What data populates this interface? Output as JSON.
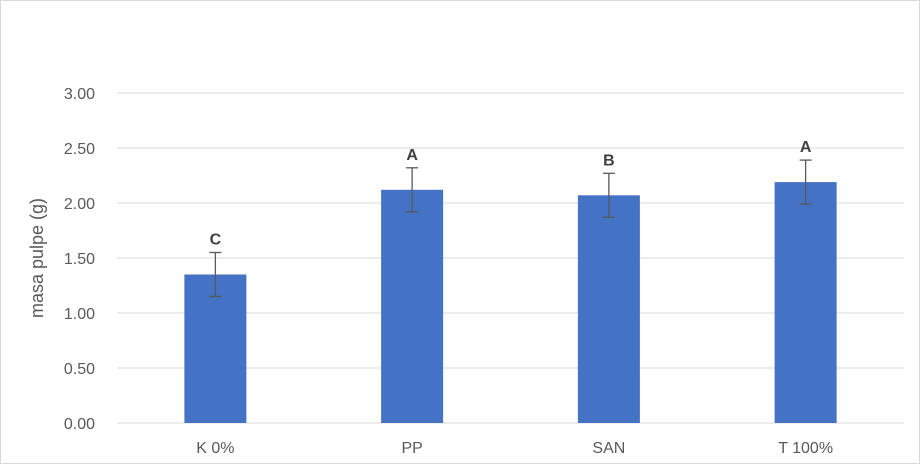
{
  "chart_data": {
    "type": "bar",
    "title": "",
    "xlabel": "",
    "ylabel": "masa pulpe (g)",
    "categories": [
      "K 0%",
      "PP",
      "SAN",
      "T 100%"
    ],
    "values": [
      1.35,
      2.12,
      2.07,
      2.19
    ],
    "error": [
      0.2,
      0.2,
      0.2,
      0.2
    ],
    "annotations": [
      "C",
      "A",
      "B",
      "A"
    ],
    "ylim": [
      0,
      3.0
    ],
    "yticks": [
      0.0,
      0.5,
      1.0,
      1.5,
      2.0,
      2.5,
      3.0
    ],
    "ytick_labels": [
      "0.00",
      "0.50",
      "1.00",
      "1.50",
      "2.00",
      "2.50",
      "3.00"
    ],
    "grid": true,
    "legend": "none",
    "colors": {
      "bar": "#4472c4",
      "grid": "#d9d9d9",
      "error_bar": "#595959"
    }
  }
}
